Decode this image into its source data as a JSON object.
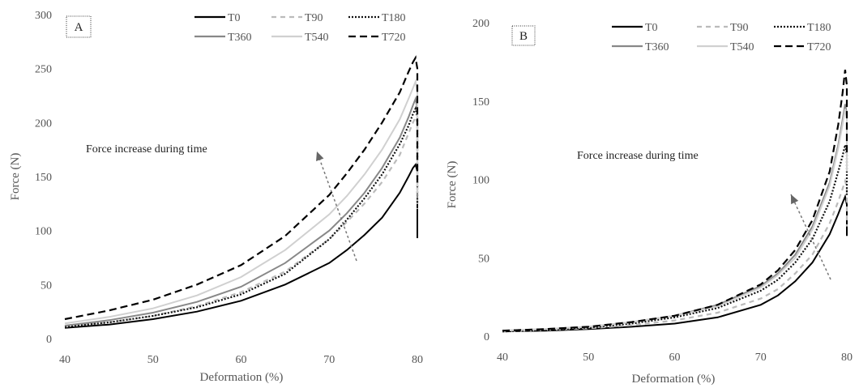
{
  "chart_data": [
    {
      "type": "line",
      "panel_label": "A",
      "xlabel": "Deformation (%)",
      "ylabel": "Force (N)",
      "xlim": [
        40,
        80
      ],
      "ylim": [
        0,
        300
      ],
      "xticks": [
        40,
        50,
        60,
        70,
        80
      ],
      "yticks": [
        0,
        50,
        100,
        150,
        200,
        250,
        300
      ],
      "grid": false,
      "legend_position": "top-right",
      "annotation": "Force increase during time",
      "series": [
        {
          "name": "T0",
          "color": "#000000",
          "dash": "solid",
          "drop_to": 93,
          "x": [
            40,
            45,
            50,
            55,
            60,
            65,
            70,
            72,
            74,
            76,
            78,
            79,
            79.5,
            79.8,
            80
          ],
          "y": [
            10,
            13,
            18,
            25,
            35,
            50,
            70,
            82,
            96,
            112,
            135,
            150,
            158,
            161,
            155
          ]
        },
        {
          "name": "T90",
          "color": "#bbbbbb",
          "dash": "dashed",
          "drop_to": 120,
          "x": [
            40,
            45,
            50,
            55,
            60,
            65,
            70,
            72,
            74,
            76,
            78,
            79,
            79.5,
            79.8,
            80
          ],
          "y": [
            11,
            15,
            21,
            30,
            43,
            62,
            92,
            108,
            125,
            145,
            170,
            190,
            200,
            205,
            200
          ]
        },
        {
          "name": "T180",
          "color": "#111111",
          "dash": "dotted",
          "drop_to": 125,
          "x": [
            40,
            45,
            50,
            55,
            60,
            65,
            70,
            72,
            74,
            76,
            78,
            79,
            79.5,
            79.8,
            80
          ],
          "y": [
            11,
            15,
            21,
            29,
            41,
            60,
            92,
            110,
            130,
            152,
            180,
            197,
            208,
            213,
            205
          ]
        },
        {
          "name": "T360",
          "color": "#888888",
          "dash": "solid",
          "drop_to": 130,
          "x": [
            40,
            45,
            50,
            55,
            60,
            65,
            70,
            72,
            74,
            76,
            78,
            79,
            79.5,
            79.8,
            80
          ],
          "y": [
            12,
            17,
            24,
            34,
            48,
            70,
            100,
            116,
            135,
            158,
            186,
            205,
            216,
            222,
            213
          ]
        },
        {
          "name": "T540",
          "color": "#d0d0d0",
          "dash": "solid",
          "drop_to": 135,
          "x": [
            40,
            45,
            50,
            55,
            60,
            65,
            70,
            72,
            74,
            76,
            78,
            79,
            79.5,
            79.8,
            80
          ],
          "y": [
            14,
            20,
            28,
            40,
            57,
            82,
            115,
            132,
            152,
            175,
            203,
            222,
            232,
            238,
            228
          ]
        },
        {
          "name": "T720",
          "color": "#000000",
          "dash": "longdash",
          "drop_to": 140,
          "x": [
            40,
            45,
            50,
            55,
            60,
            65,
            70,
            72,
            74,
            76,
            78,
            79,
            79.5,
            79.8,
            80
          ],
          "y": [
            18,
            26,
            36,
            50,
            68,
            95,
            133,
            153,
            175,
            200,
            228,
            247,
            256,
            260,
            250
          ]
        }
      ]
    },
    {
      "type": "line",
      "panel_label": "B",
      "xlabel": "Deformation (%)",
      "ylabel": "Force (N)",
      "xlim": [
        40,
        80
      ],
      "ylim": [
        0,
        200
      ],
      "xticks": [
        40,
        50,
        60,
        70,
        80
      ],
      "yticks": [
        0,
        50,
        100,
        150,
        200
      ],
      "grid": false,
      "legend_position": "top-right",
      "annotation": "Force increase during time",
      "series": [
        {
          "name": "T0",
          "color": "#000000",
          "dash": "solid",
          "drop_to": 64,
          "x": [
            40,
            45,
            50,
            55,
            60,
            65,
            70,
            72,
            74,
            76,
            78,
            79,
            79.5,
            79.8,
            80
          ],
          "y": [
            3,
            3.5,
            4.5,
            6,
            8,
            12,
            20,
            26,
            35,
            47,
            65,
            78,
            85,
            89,
            84
          ]
        },
        {
          "name": "T90",
          "color": "#bbbbbb",
          "dash": "dashed",
          "drop_to": 70,
          "x": [
            40,
            45,
            50,
            55,
            60,
            65,
            70,
            72,
            74,
            76,
            78,
            79,
            79.5,
            79.8,
            80
          ],
          "y": [
            3,
            4,
            5,
            7,
            10,
            15,
            24,
            30,
            40,
            52,
            72,
            86,
            94,
            99,
            95
          ]
        },
        {
          "name": "T180",
          "color": "#111111",
          "dash": "dotted",
          "drop_to": 90,
          "x": [
            40,
            45,
            50,
            55,
            60,
            65,
            70,
            72,
            74,
            76,
            78,
            79,
            79.5,
            79.8,
            80
          ],
          "y": [
            3,
            4,
            5.5,
            8,
            12,
            18,
            29,
            36,
            47,
            62,
            86,
            105,
            115,
            122,
            116
          ]
        },
        {
          "name": "T360",
          "color": "#888888",
          "dash": "solid",
          "drop_to": 110,
          "x": [
            40,
            45,
            50,
            55,
            60,
            65,
            70,
            72,
            74,
            76,
            78,
            79,
            79.5,
            79.8,
            80
          ],
          "y": [
            3.5,
            4.5,
            6,
            9,
            13,
            20,
            32,
            40,
            52,
            70,
            98,
            122,
            138,
            148,
            142
          ]
        },
        {
          "name": "T540",
          "color": "#d0d0d0",
          "dash": "solid",
          "drop_to": 105,
          "x": [
            40,
            45,
            50,
            55,
            60,
            65,
            70,
            72,
            74,
            76,
            78,
            79,
            79.5,
            79.8,
            80
          ],
          "y": [
            3.5,
            4.5,
            6,
            9,
            13,
            19,
            31,
            39,
            50,
            68,
            96,
            120,
            135,
            145,
            139
          ]
        },
        {
          "name": "T720",
          "color": "#000000",
          "dash": "longdash",
          "drop_to": 115,
          "x": [
            40,
            45,
            50,
            55,
            60,
            65,
            70,
            72,
            74,
            76,
            78,
            79,
            79.5,
            79.8,
            80
          ],
          "y": [
            3.5,
            4.5,
            6,
            9,
            13,
            20,
            33,
            42,
            55,
            74,
            105,
            135,
            155,
            170,
            160
          ]
        }
      ]
    }
  ]
}
